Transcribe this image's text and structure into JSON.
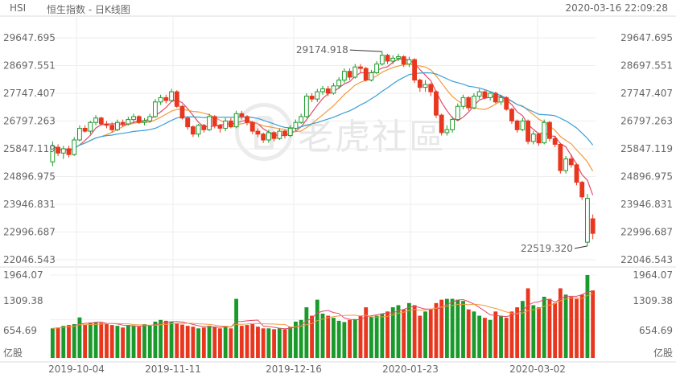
{
  "header": {
    "symbol": "HSI",
    "name": "恒生指数 - 日K线图",
    "timestamp": "2020-03-16 22:09:28"
  },
  "watermark": {
    "text": "老虎社區"
  },
  "colors": {
    "up": "#e8371e",
    "down": "#1a9a2a",
    "ma5": "#e04b6b",
    "ma10": "#f39a3c",
    "ma20": "#3a9fd8",
    "vma": "#e04b6b",
    "vma2": "#f39a3c"
  },
  "chart_data": {
    "type": "candlestick",
    "price_axis_labels": [
      "29647.695",
      "28697.551",
      "27747.407",
      "26797.263",
      "25847.119",
      "24896.975",
      "23946.831",
      "22996.687",
      "22046.543"
    ],
    "price_range": [
      22046.543,
      29647.695
    ],
    "volume_axis_labels": [
      "1964.07",
      "1309.38",
      "654.69",
      "亿股"
    ],
    "volume_range": [
      0,
      1964.07
    ],
    "x_labels": [
      "2019-10-04",
      "2019-11-11",
      "2019-12-16",
      "2020-01-23",
      "2020-03-02"
    ],
    "annotations": {
      "high": "29174.918",
      "low": "22519.320"
    },
    "candles": [
      {
        "o": 25400,
        "c": 25950,
        "h": 26100,
        "l": 25250,
        "v": 700
      },
      {
        "o": 25900,
        "c": 25700,
        "h": 26000,
        "l": 25600,
        "v": 720
      },
      {
        "o": 25700,
        "c": 25850,
        "h": 25950,
        "l": 25500,
        "v": 760
      },
      {
        "o": 25850,
        "c": 25650,
        "h": 25950,
        "l": 25550,
        "v": 780
      },
      {
        "o": 25650,
        "c": 26150,
        "h": 26250,
        "l": 25600,
        "v": 800
      },
      {
        "o": 26150,
        "c": 26550,
        "h": 26650,
        "l": 26100,
        "v": 960
      },
      {
        "o": 26550,
        "c": 26450,
        "h": 26650,
        "l": 26400,
        "v": 790
      },
      {
        "o": 26450,
        "c": 26750,
        "h": 26800,
        "l": 26350,
        "v": 820
      },
      {
        "o": 26750,
        "c": 26900,
        "h": 27000,
        "l": 26650,
        "v": 850
      },
      {
        "o": 26900,
        "c": 26700,
        "h": 26950,
        "l": 26650,
        "v": 830
      },
      {
        "o": 26700,
        "c": 26650,
        "h": 26800,
        "l": 26550,
        "v": 800
      },
      {
        "o": 26650,
        "c": 26500,
        "h": 26750,
        "l": 26400,
        "v": 780
      },
      {
        "o": 26500,
        "c": 26750,
        "h": 26850,
        "l": 26450,
        "v": 760
      },
      {
        "o": 26750,
        "c": 26700,
        "h": 26850,
        "l": 26600,
        "v": 720
      },
      {
        "o": 26700,
        "c": 26850,
        "h": 26950,
        "l": 26650,
        "v": 780
      },
      {
        "o": 26850,
        "c": 26950,
        "h": 27050,
        "l": 26750,
        "v": 760
      },
      {
        "o": 26950,
        "c": 26750,
        "h": 27000,
        "l": 26700,
        "v": 740
      },
      {
        "o": 26750,
        "c": 26800,
        "h": 26900,
        "l": 26650,
        "v": 800
      },
      {
        "o": 26800,
        "c": 26950,
        "h": 27050,
        "l": 26750,
        "v": 780
      },
      {
        "o": 26950,
        "c": 27450,
        "h": 27550,
        "l": 26900,
        "v": 860
      },
      {
        "o": 27450,
        "c": 27600,
        "h": 27700,
        "l": 27350,
        "v": 900
      },
      {
        "o": 27600,
        "c": 27500,
        "h": 27700,
        "l": 27400,
        "v": 880
      },
      {
        "o": 27500,
        "c": 27800,
        "h": 27900,
        "l": 27450,
        "v": 860
      },
      {
        "o": 27800,
        "c": 27300,
        "h": 27850,
        "l": 27250,
        "v": 820
      },
      {
        "o": 27300,
        "c": 26900,
        "h": 27350,
        "l": 26850,
        "v": 790
      },
      {
        "o": 26900,
        "c": 26600,
        "h": 26950,
        "l": 26500,
        "v": 760
      },
      {
        "o": 26600,
        "c": 26350,
        "h": 26650,
        "l": 26250,
        "v": 740
      },
      {
        "o": 26350,
        "c": 26650,
        "h": 26700,
        "l": 26250,
        "v": 700
      },
      {
        "o": 26650,
        "c": 26500,
        "h": 26700,
        "l": 26400,
        "v": 720
      },
      {
        "o": 26500,
        "c": 26950,
        "h": 27050,
        "l": 26450,
        "v": 760
      },
      {
        "o": 26950,
        "c": 26650,
        "h": 27000,
        "l": 26550,
        "v": 740
      },
      {
        "o": 26650,
        "c": 26550,
        "h": 26700,
        "l": 26400,
        "v": 700
      },
      {
        "o": 26550,
        "c": 26800,
        "h": 26900,
        "l": 26450,
        "v": 760
      },
      {
        "o": 26800,
        "c": 26600,
        "h": 26900,
        "l": 26550,
        "v": 700
      },
      {
        "o": 26600,
        "c": 27050,
        "h": 27150,
        "l": 26550,
        "v": 1400
      },
      {
        "o": 27050,
        "c": 26950,
        "h": 27150,
        "l": 26850,
        "v": 760
      },
      {
        "o": 26950,
        "c": 26750,
        "h": 27000,
        "l": 26650,
        "v": 780
      },
      {
        "o": 26750,
        "c": 26450,
        "h": 26800,
        "l": 26350,
        "v": 800
      },
      {
        "o": 26450,
        "c": 26350,
        "h": 26550,
        "l": 26250,
        "v": 740
      },
      {
        "o": 26350,
        "c": 26150,
        "h": 26400,
        "l": 26050,
        "v": 700
      },
      {
        "o": 26150,
        "c": 26400,
        "h": 26500,
        "l": 26050,
        "v": 700
      },
      {
        "o": 26400,
        "c": 26200,
        "h": 26450,
        "l": 26100,
        "v": 680
      },
      {
        "o": 26200,
        "c": 26450,
        "h": 26550,
        "l": 26150,
        "v": 700
      },
      {
        "o": 26450,
        "c": 26300,
        "h": 26500,
        "l": 26200,
        "v": 680
      },
      {
        "o": 26300,
        "c": 26550,
        "h": 26650,
        "l": 26250,
        "v": 740
      },
      {
        "o": 26550,
        "c": 26750,
        "h": 26850,
        "l": 26450,
        "v": 860
      },
      {
        "o": 26750,
        "c": 26950,
        "h": 27050,
        "l": 26700,
        "v": 900
      },
      {
        "o": 26950,
        "c": 27650,
        "h": 27750,
        "l": 26900,
        "v": 1200
      },
      {
        "o": 27650,
        "c": 27550,
        "h": 27750,
        "l": 27450,
        "v": 1000
      },
      {
        "o": 27550,
        "c": 27800,
        "h": 27900,
        "l": 27450,
        "v": 1380
      },
      {
        "o": 27800,
        "c": 27900,
        "h": 28000,
        "l": 27700,
        "v": 1050
      },
      {
        "o": 27900,
        "c": 27750,
        "h": 28000,
        "l": 27650,
        "v": 1000
      },
      {
        "o": 27750,
        "c": 28000,
        "h": 28100,
        "l": 27700,
        "v": 950
      },
      {
        "o": 28000,
        "c": 28200,
        "h": 28300,
        "l": 27900,
        "v": 880
      },
      {
        "o": 28200,
        "c": 28500,
        "h": 28600,
        "l": 28100,
        "v": 850
      },
      {
        "o": 28500,
        "c": 28300,
        "h": 28600,
        "l": 28200,
        "v": 900
      },
      {
        "o": 28300,
        "c": 28650,
        "h": 28750,
        "l": 28250,
        "v": 920
      },
      {
        "o": 28650,
        "c": 28600,
        "h": 28750,
        "l": 28450,
        "v": 1000
      },
      {
        "o": 28600,
        "c": 28200,
        "h": 28650,
        "l": 28150,
        "v": 1200
      },
      {
        "o": 28200,
        "c": 28450,
        "h": 28550,
        "l": 28150,
        "v": 980
      },
      {
        "o": 28450,
        "c": 28750,
        "h": 28850,
        "l": 28400,
        "v": 1000
      },
      {
        "o": 28750,
        "c": 29050,
        "h": 29175,
        "l": 28700,
        "v": 1050
      },
      {
        "o": 29050,
        "c": 28850,
        "h": 29100,
        "l": 28750,
        "v": 1100
      },
      {
        "o": 28850,
        "c": 28950,
        "h": 29050,
        "l": 28750,
        "v": 1200
      },
      {
        "o": 28950,
        "c": 29000,
        "h": 29100,
        "l": 28850,
        "v": 1250
      },
      {
        "o": 29000,
        "c": 28750,
        "h": 29050,
        "l": 28650,
        "v": 1150
      },
      {
        "o": 28750,
        "c": 28900,
        "h": 29000,
        "l": 28650,
        "v": 1300
      },
      {
        "o": 28900,
        "c": 28200,
        "h": 28950,
        "l": 28100,
        "v": 1250
      },
      {
        "o": 28200,
        "c": 27950,
        "h": 28250,
        "l": 27800,
        "v": 1000
      },
      {
        "o": 27950,
        "c": 28050,
        "h": 28200,
        "l": 27800,
        "v": 1100
      },
      {
        "o": 28050,
        "c": 27800,
        "h": 28100,
        "l": 27650,
        "v": 1150
      },
      {
        "o": 27800,
        "c": 27000,
        "h": 27850,
        "l": 26900,
        "v": 1300
      },
      {
        "o": 27000,
        "c": 26400,
        "h": 27050,
        "l": 26300,
        "v": 1380
      },
      {
        "o": 26400,
        "c": 26500,
        "h": 26650,
        "l": 26300,
        "v": 1400
      },
      {
        "o": 26500,
        "c": 26850,
        "h": 26950,
        "l": 26400,
        "v": 1400
      },
      {
        "o": 26850,
        "c": 27300,
        "h": 27400,
        "l": 26800,
        "v": 1380
      },
      {
        "o": 27300,
        "c": 27600,
        "h": 27700,
        "l": 27200,
        "v": 1350
      },
      {
        "o": 27600,
        "c": 27250,
        "h": 27650,
        "l": 27150,
        "v": 1150
      },
      {
        "o": 27250,
        "c": 27650,
        "h": 27750,
        "l": 27200,
        "v": 1100
      },
      {
        "o": 27650,
        "c": 27800,
        "h": 27900,
        "l": 27550,
        "v": 1000
      },
      {
        "o": 27800,
        "c": 27600,
        "h": 27850,
        "l": 27550,
        "v": 950
      },
      {
        "o": 27600,
        "c": 27750,
        "h": 27800,
        "l": 27500,
        "v": 900
      },
      {
        "o": 27750,
        "c": 27450,
        "h": 27800,
        "l": 27400,
        "v": 1100
      },
      {
        "o": 27450,
        "c": 27600,
        "h": 27700,
        "l": 27350,
        "v": 1000
      },
      {
        "o": 27600,
        "c": 27200,
        "h": 27650,
        "l": 27150,
        "v": 950
      },
      {
        "o": 27200,
        "c": 26800,
        "h": 27250,
        "l": 26700,
        "v": 1100
      },
      {
        "o": 26800,
        "c": 26500,
        "h": 26850,
        "l": 26400,
        "v": 1200
      },
      {
        "o": 26500,
        "c": 26800,
        "h": 26900,
        "l": 26450,
        "v": 1350
      },
      {
        "o": 26800,
        "c": 26100,
        "h": 26850,
        "l": 26000,
        "v": 1650
      },
      {
        "o": 26100,
        "c": 26350,
        "h": 26450,
        "l": 26000,
        "v": 1250
      },
      {
        "o": 26350,
        "c": 26050,
        "h": 26400,
        "l": 25950,
        "v": 1200
      },
      {
        "o": 26050,
        "c": 26750,
        "h": 26850,
        "l": 26000,
        "v": 1450
      },
      {
        "o": 26750,
        "c": 26200,
        "h": 26800,
        "l": 26100,
        "v": 1400
      },
      {
        "o": 26200,
        "c": 26000,
        "h": 26300,
        "l": 25900,
        "v": 1300
      },
      {
        "o": 26000,
        "c": 25100,
        "h": 26050,
        "l": 25000,
        "v": 1650
      },
      {
        "o": 25100,
        "c": 25500,
        "h": 25600,
        "l": 25000,
        "v": 1500
      },
      {
        "o": 25500,
        "c": 25300,
        "h": 25650,
        "l": 25200,
        "v": 1450
      },
      {
        "o": 25300,
        "c": 24700,
        "h": 25350,
        "l": 24600,
        "v": 1400
      },
      {
        "o": 24700,
        "c": 24200,
        "h": 24750,
        "l": 24100,
        "v": 1500
      },
      {
        "o": 22650,
        "c": 24150,
        "h": 24300,
        "l": 22519,
        "v": 1964
      },
      {
        "o": 23450,
        "c": 22950,
        "h": 23600,
        "l": 22750,
        "v": 1600
      }
    ]
  }
}
